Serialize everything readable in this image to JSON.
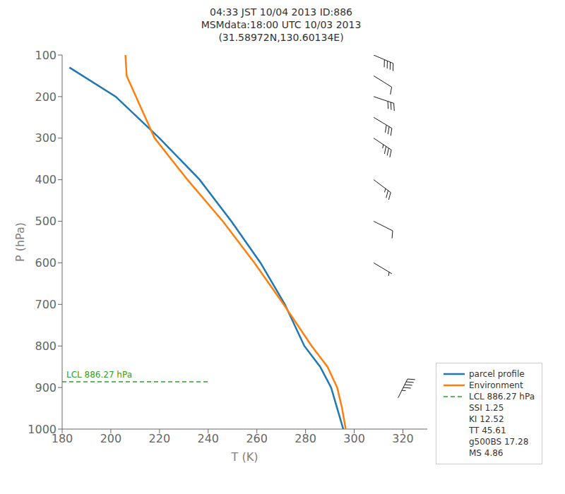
{
  "chart_data": {
    "type": "line",
    "title": "04:33 JST 10/04 2013  ID:886\nMSMdata:18:00 UTC 10/03 2013\n(31.58972N,130.60134E)",
    "x_label": "T (K)",
    "y_label": "P (hPa)",
    "xlim": [
      180,
      330
    ],
    "xticks": [
      180,
      200,
      220,
      240,
      260,
      280,
      300,
      320
    ],
    "ylim": [
      1000,
      100
    ],
    "yticks": [
      100,
      200,
      300,
      400,
      500,
      600,
      700,
      800,
      900,
      1000
    ],
    "grid": false,
    "legend": "lower right",
    "series": [
      {
        "name": "parcel profile",
        "color": "#1f77b4",
        "line_style": "solid",
        "x": [
          183.0,
          202.0,
          220.0,
          236.5,
          249.5,
          261.5,
          271.5,
          279.5,
          286.0,
          290.5,
          293.0,
          295.5
        ],
        "values": [
          130,
          200,
          300,
          400,
          500,
          600,
          700,
          800,
          850,
          900,
          950,
          1000
        ]
      },
      {
        "name": "Environment",
        "color": "#ff7f0e",
        "line_style": "solid",
        "x": [
          206.0,
          206.5,
          218.0,
          231.5,
          246.0,
          259.0,
          271.0,
          282.5,
          289.0,
          293.0,
          295.0,
          296.5
        ],
        "values": [
          100,
          150,
          300,
          400,
          500,
          600,
          700,
          800,
          850,
          900,
          950,
          1000
        ]
      }
    ],
    "lcl": {
      "name": "LCL 886.27 hPa",
      "annotation": "LCL 886.27 hPa",
      "y": 886.27,
      "x": [
        180,
        240
      ],
      "color": "#2ca02c",
      "line_style": "dashed"
    },
    "stats": [
      "SSI 1.25",
      "KI 12.52",
      "TT 45.61",
      "g500BS 17.28",
      "MS 4.86"
    ],
    "barbs": [
      {
        "x": 308,
        "y": 100,
        "u": -35,
        "v": 15
      },
      {
        "x": 308,
        "y": 150,
        "u": -8,
        "v": 5
      },
      {
        "x": 308,
        "y": 200,
        "u": -30,
        "v": 10
      },
      {
        "x": 308,
        "y": 250,
        "u": -25,
        "v": 15
      },
      {
        "x": 308,
        "y": 300,
        "u": -30,
        "v": 20
      },
      {
        "x": 308,
        "y": 400,
        "u": -20,
        "v": 15
      },
      {
        "x": 308,
        "y": 500,
        "u": -10,
        "v": 5
      },
      {
        "x": 308,
        "y": 600,
        "u": -5,
        "v": 3
      },
      {
        "x": 318,
        "y": 925,
        "u": -20,
        "v": -40
      }
    ]
  }
}
